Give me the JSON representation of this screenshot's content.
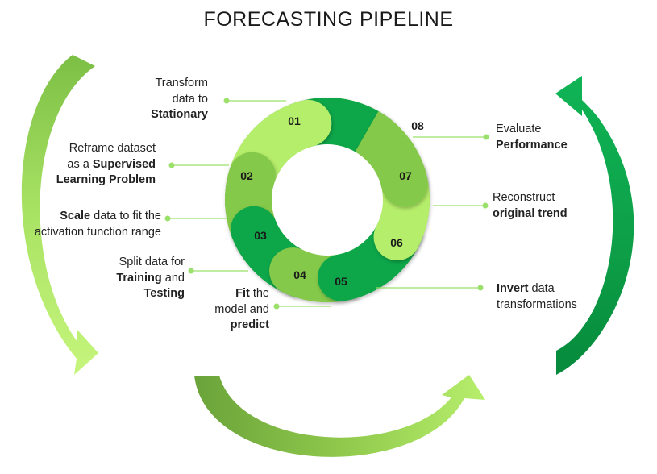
{
  "title": "FORECASTING PIPELINE",
  "steps": [
    {
      "num": "01",
      "lines": [
        [
          {
            "t": "Transform"
          }
        ],
        [
          {
            "t": "data to"
          }
        ],
        [
          {
            "t": "Stationary",
            "b": true
          }
        ]
      ]
    },
    {
      "num": "02",
      "lines": [
        [
          {
            "t": "Reframe dataset"
          }
        ],
        [
          {
            "t": "as a "
          },
          {
            "t": "Supervised",
            "b": true
          }
        ],
        [
          {
            "t": "Learning Problem",
            "b": true
          }
        ]
      ]
    },
    {
      "num": "03",
      "lines": [
        [
          {
            "t": "Scale",
            "b": true
          },
          {
            "t": " data to fit the"
          }
        ],
        [
          {
            "t": "activation function range"
          }
        ]
      ]
    },
    {
      "num": "04",
      "lines": [
        [
          {
            "t": "Split data for"
          }
        ],
        [
          {
            "t": "Training",
            "b": true
          },
          {
            "t": " and"
          }
        ],
        [
          {
            "t": "Testing",
            "b": true
          }
        ]
      ]
    },
    {
      "num": "05",
      "lines": [
        [
          {
            "t": "Fit",
            "b": true
          },
          {
            "t": " the"
          }
        ],
        [
          {
            "t": "model and"
          }
        ],
        [
          {
            "t": "predict",
            "b": true
          }
        ]
      ]
    },
    {
      "num": "06",
      "lines": [
        [
          {
            "t": "Invert",
            "b": true
          },
          {
            "t": " data"
          }
        ],
        [
          {
            "t": "transformations"
          }
        ]
      ]
    },
    {
      "num": "07",
      "lines": [
        [
          {
            "t": "Reconstruct"
          }
        ],
        [
          {
            "t": "original trend",
            "b": true
          }
        ]
      ]
    },
    {
      "num": "08",
      "lines": [
        [
          {
            "t": "Evaluate"
          }
        ],
        [
          {
            "t": "Performance",
            "b": true
          }
        ]
      ]
    }
  ],
  "colors": {
    "dark": "#0aa64a",
    "mid": "#84c94a",
    "light": "#b5ee6a",
    "connector": "#9ae06a",
    "arrow_dark": "#008a3e",
    "arrow_mid": "#6fa83a"
  }
}
